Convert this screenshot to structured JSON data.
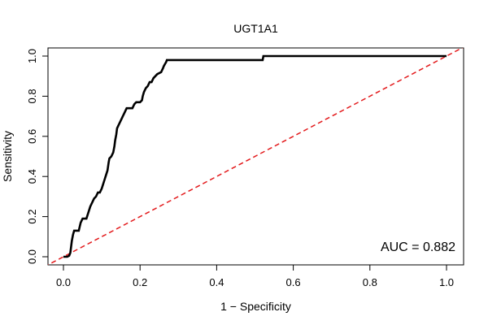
{
  "chart_data": {
    "type": "line",
    "title": "UGT1A1",
    "xlabel": "1 − Specificity",
    "ylabel": "Sensitivity",
    "xlim": [
      0.0,
      1.0
    ],
    "ylim": [
      0.0,
      1.0
    ],
    "x_ticks": [
      "0.0",
      "0.2",
      "0.4",
      "0.6",
      "0.8",
      "1.0"
    ],
    "y_ticks": [
      "0.0",
      "0.2",
      "0.4",
      "0.6",
      "0.8",
      "1.0"
    ],
    "grid": false,
    "annotation": "AUC = 0.882",
    "series": [
      {
        "role": "roc-curve",
        "color": "#000000",
        "points": [
          [
            0.0,
            0.0
          ],
          [
            0.01,
            0.0
          ],
          [
            0.015,
            0.005
          ],
          [
            0.018,
            0.02
          ],
          [
            0.02,
            0.05
          ],
          [
            0.022,
            0.08
          ],
          [
            0.025,
            0.11
          ],
          [
            0.028,
            0.13
          ],
          [
            0.04,
            0.13
          ],
          [
            0.045,
            0.17
          ],
          [
            0.05,
            0.19
          ],
          [
            0.06,
            0.19
          ],
          [
            0.065,
            0.22
          ],
          [
            0.07,
            0.25
          ],
          [
            0.075,
            0.27
          ],
          [
            0.08,
            0.29
          ],
          [
            0.085,
            0.3
          ],
          [
            0.09,
            0.32
          ],
          [
            0.095,
            0.32
          ],
          [
            0.1,
            0.34
          ],
          [
            0.105,
            0.37
          ],
          [
            0.11,
            0.4
          ],
          [
            0.115,
            0.43
          ],
          [
            0.118,
            0.47
          ],
          [
            0.12,
            0.49
          ],
          [
            0.125,
            0.5
          ],
          [
            0.13,
            0.52
          ],
          [
            0.133,
            0.55
          ],
          [
            0.135,
            0.58
          ],
          [
            0.138,
            0.61
          ],
          [
            0.14,
            0.64
          ],
          [
            0.145,
            0.66
          ],
          [
            0.15,
            0.68
          ],
          [
            0.155,
            0.7
          ],
          [
            0.16,
            0.72
          ],
          [
            0.165,
            0.74
          ],
          [
            0.18,
            0.74
          ],
          [
            0.185,
            0.76
          ],
          [
            0.19,
            0.77
          ],
          [
            0.2,
            0.77
          ],
          [
            0.205,
            0.78
          ],
          [
            0.207,
            0.8
          ],
          [
            0.21,
            0.82
          ],
          [
            0.215,
            0.84
          ],
          [
            0.22,
            0.85
          ],
          [
            0.225,
            0.87
          ],
          [
            0.23,
            0.87
          ],
          [
            0.235,
            0.89
          ],
          [
            0.24,
            0.9
          ],
          [
            0.245,
            0.91
          ],
          [
            0.255,
            0.92
          ],
          [
            0.26,
            0.94
          ],
          [
            0.262,
            0.95
          ],
          [
            0.265,
            0.96
          ],
          [
            0.268,
            0.97
          ],
          [
            0.27,
            0.98
          ],
          [
            0.52,
            0.98
          ],
          [
            0.522,
            1.0
          ],
          [
            1.0,
            1.0
          ]
        ]
      },
      {
        "role": "chance-diagonal",
        "color": "#e31a1c",
        "dashed": true,
        "points": [
          [
            -0.05,
            -0.05
          ],
          [
            1.05,
            1.05
          ]
        ]
      }
    ]
  }
}
